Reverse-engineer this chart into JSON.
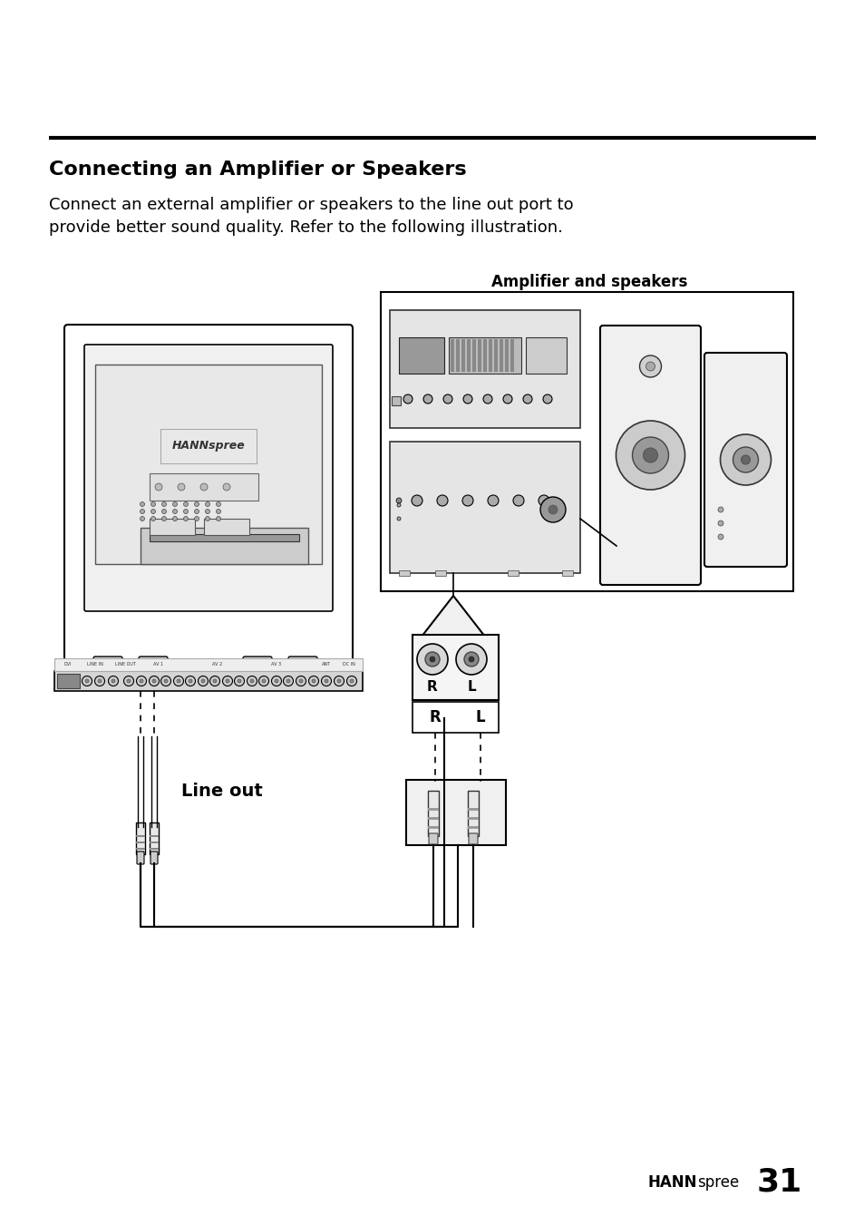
{
  "bg_color": "#ffffff",
  "title": "Connecting an Amplifier or Speakers",
  "body_text": "Connect an external amplifier or speakers to the line out port to\nprovide better sound quality. Refer to the following illustration.",
  "footer_brand_bold": "HANN",
  "footer_brand_normal": "spree",
  "footer_page": "31",
  "line_color": "#000000",
  "hr_color": "#000000",
  "label_lineout": "Line out",
  "label_amp": "Amplifier and speakers"
}
